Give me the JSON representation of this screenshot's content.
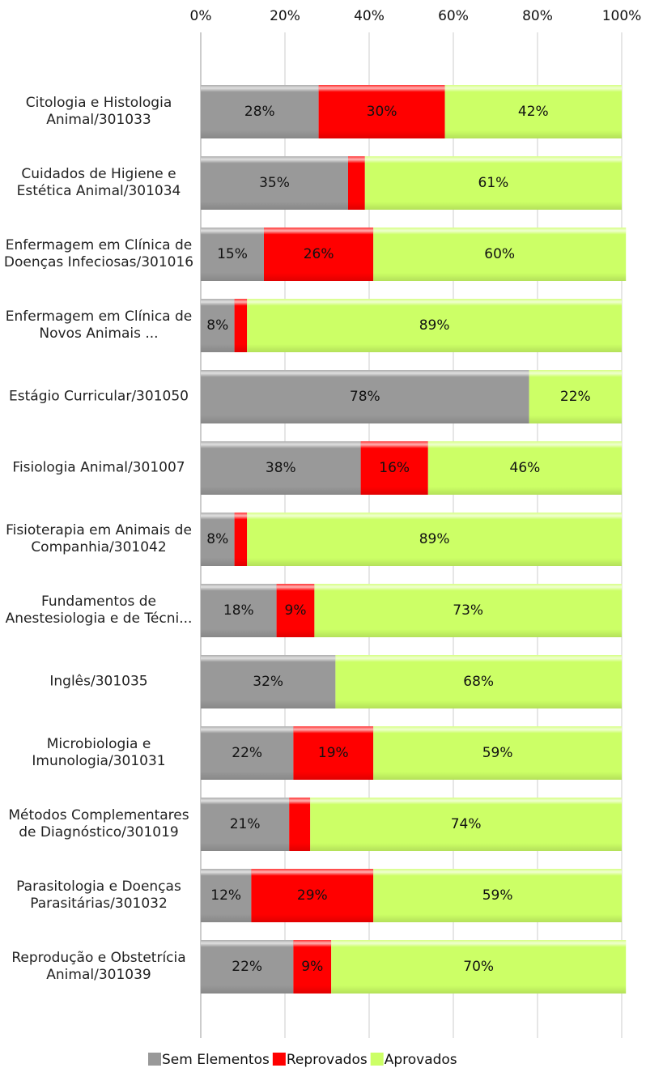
{
  "chart_data": {
    "type": "stacked_barh",
    "categories": [
      "Citologia e Histologia Animal/301033",
      "Cuidados de Higiene e Estética Animal/301034",
      "Enfermagem em Clínica de Doenças Infeciosas/301016",
      "Enfermagem em Clínica de Novos Animais ...",
      "Estágio Curricular/301050",
      "Fisiologia Animal/301007",
      "Fisioterapia em Animais de Companhia/301042",
      "Fundamentos de Anestesiologia e de Técni...",
      "Inglês/301035",
      "Microbiologia e Imunologia/301031",
      "Métodos Complementares de Diagnóstico/301019",
      "Parasitologia e Doenças Parasitárias/301032",
      "Reprodução e Obstetrícia Animal/301039"
    ],
    "series": [
      {
        "name": "Sem Elementos",
        "color": "#999999",
        "values": [
          28,
          35,
          15,
          8,
          78,
          38,
          8,
          18,
          32,
          22,
          21,
          12,
          22
        ],
        "value_labels": [
          "28%",
          "35%",
          "15%",
          "8%",
          "78%",
          "38%",
          "8%",
          "18%",
          "32%",
          "22%",
          "21%",
          "12%",
          "22%"
        ]
      },
      {
        "name": "Reprovados",
        "color": "#ff0000",
        "values": [
          30,
          4,
          26,
          3,
          0,
          16,
          3,
          9,
          0,
          19,
          5,
          29,
          9
        ],
        "value_labels": [
          "30%",
          null,
          "26%",
          null,
          null,
          "16%",
          null,
          "9%",
          null,
          "19%",
          null,
          "29%",
          "9%"
        ]
      },
      {
        "name": "Aprovados",
        "color": "#ccff66",
        "values": [
          42,
          61,
          60,
          89,
          22,
          46,
          89,
          73,
          68,
          59,
          74,
          59,
          70
        ],
        "value_labels": [
          "42%",
          "61%",
          "60%",
          "89%",
          "22%",
          "46%",
          "89%",
          "73%",
          "68%",
          "59%",
          "74%",
          "59%",
          "70%"
        ]
      }
    ],
    "xlim": [
      0,
      100
    ],
    "xticks": [
      {
        "value": 0,
        "label": "0%"
      },
      {
        "value": 20,
        "label": "20%"
      },
      {
        "value": 40,
        "label": "40%"
      },
      {
        "value": 60,
        "label": "60%"
      },
      {
        "value": 80,
        "label": "80%"
      },
      {
        "value": 100,
        "label": "100%"
      }
    ],
    "grid": true,
    "legend": "bottom"
  }
}
